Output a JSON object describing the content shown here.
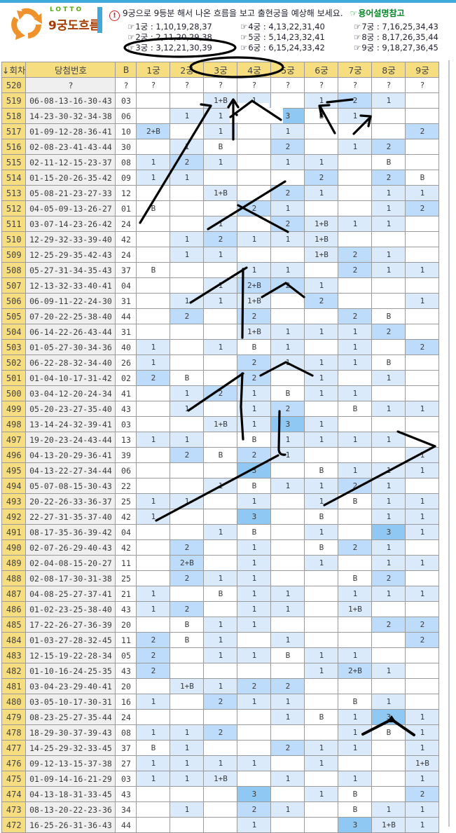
{
  "page": {
    "logo_text": "LOTTO",
    "title": "9궁도흐름"
  },
  "info": {
    "marker": "☞",
    "notice": "9궁으로 9등분 해서 나온 흐름을 보고 출현궁을 예상해 보세요.",
    "link": "용어설명참고"
  },
  "legend": {
    "entries": [
      "1궁 : 1,10,19,28,37",
      "2궁 : 2,11,20,29,38",
      "3궁 : 3,12,21,30,39",
      "4궁 : 4,13,22,31,40",
      "5궁 : 5,14,23,32,41",
      "6궁 : 6,15,24,33,42",
      "7궁 : 7,16,25,34,43",
      "8궁 : 8,17,26,35,44",
      "9궁 : 9,18,27,36,45"
    ]
  },
  "table": {
    "columns": [
      "↓회차",
      "당첨번호",
      "B",
      "1궁",
      "2궁",
      "3궁",
      "4궁",
      "5궁",
      "6궁",
      "7궁",
      "8궁",
      "9궁"
    ],
    "rows": [
      {
        "draw": "520",
        "numbers": "?",
        "bonus": "?",
        "cells": [
          "?",
          "?",
          "?",
          "?",
          "?",
          "?",
          "?",
          "?",
          "?"
        ]
      },
      {
        "draw": "519",
        "numbers": "06-08-13-16-30-43",
        "bonus": "03",
        "cells": [
          "",
          "",
          "1+B",
          "1",
          "",
          "1",
          "2",
          "1",
          ""
        ]
      },
      {
        "draw": "518",
        "numbers": "14-23-30-32-34-38",
        "bonus": "06",
        "cells": [
          "",
          "1",
          "1",
          "",
          "3",
          "B",
          "1",
          "",
          ""
        ]
      },
      {
        "draw": "517",
        "numbers": "01-09-12-28-36-41",
        "bonus": "10",
        "cells": [
          "2+B",
          "",
          "1",
          "",
          "1",
          "",
          "",
          "",
          "2"
        ]
      },
      {
        "draw": "516",
        "numbers": "02-08-23-41-43-44",
        "bonus": "30",
        "cells": [
          "",
          "1",
          "B",
          "",
          "2",
          "",
          "1",
          "2",
          ""
        ]
      },
      {
        "draw": "515",
        "numbers": "02-11-12-15-23-37",
        "bonus": "08",
        "cells": [
          "1",
          "2",
          "1",
          "",
          "1",
          "1",
          "",
          "B",
          ""
        ]
      },
      {
        "draw": "514",
        "numbers": "01-15-20-26-35-42",
        "bonus": "09",
        "cells": [
          "1",
          "1",
          "",
          "",
          "",
          "2",
          "",
          "2",
          "B"
        ]
      },
      {
        "draw": "513",
        "numbers": "05-08-21-23-27-33",
        "bonus": "12",
        "cells": [
          "",
          "",
          "1+B",
          "",
          "2",
          "1",
          "",
          "1",
          "1"
        ]
      },
      {
        "draw": "512",
        "numbers": "04-05-09-13-26-27",
        "bonus": "01",
        "cells": [
          "B",
          "",
          "",
          "2",
          "1",
          "",
          "",
          "1",
          "2"
        ]
      },
      {
        "draw": "511",
        "numbers": "03-07-14-23-26-42",
        "bonus": "24",
        "cells": [
          "",
          "",
          "1",
          "",
          "2",
          "1+B",
          "1",
          "1",
          ""
        ]
      },
      {
        "draw": "510",
        "numbers": "12-29-32-33-39-40",
        "bonus": "42",
        "cells": [
          "",
          "1",
          "2",
          "1",
          "1",
          "1+B",
          "",
          "",
          ""
        ]
      },
      {
        "draw": "509",
        "numbers": "12-25-29-35-42-43",
        "bonus": "24",
        "cells": [
          "",
          "1",
          "1",
          "",
          "",
          "1+B",
          "2",
          "1",
          ""
        ]
      },
      {
        "draw": "508",
        "numbers": "05-27-31-34-35-43",
        "bonus": "37",
        "cells": [
          "B",
          "",
          "",
          "1",
          "1",
          "",
          "2",
          "1",
          "1"
        ]
      },
      {
        "draw": "507",
        "numbers": "12-13-32-33-40-41",
        "bonus": "04",
        "cells": [
          "",
          "",
          "1",
          "2+B",
          "2",
          "1",
          "",
          "",
          ""
        ]
      },
      {
        "draw": "506",
        "numbers": "06-09-11-22-24-30",
        "bonus": "31",
        "cells": [
          "",
          "1",
          "1",
          "1+B",
          "",
          "2",
          "",
          "",
          "1"
        ]
      },
      {
        "draw": "505",
        "numbers": "07-20-22-25-38-40",
        "bonus": "44",
        "cells": [
          "",
          "2",
          "",
          "2",
          "",
          "",
          "2",
          "B",
          ""
        ]
      },
      {
        "draw": "504",
        "numbers": "06-14-22-26-43-44",
        "bonus": "31",
        "cells": [
          "",
          "",
          "",
          "1+B",
          "1",
          "1",
          "1",
          "2",
          ""
        ]
      },
      {
        "draw": "503",
        "numbers": "01-05-27-30-34-36",
        "bonus": "40",
        "cells": [
          "1",
          "",
          "1",
          "B",
          "1",
          "",
          "1",
          "",
          "2"
        ]
      },
      {
        "draw": "502",
        "numbers": "06-22-28-32-34-40",
        "bonus": "26",
        "cells": [
          "1",
          "",
          "",
          "2",
          "1",
          "1",
          "1",
          "B",
          ""
        ]
      },
      {
        "draw": "501",
        "numbers": "01-04-10-17-31-42",
        "bonus": "02",
        "cells": [
          "2",
          "B",
          "",
          "2",
          "",
          "1",
          "",
          "1",
          ""
        ]
      },
      {
        "draw": "500",
        "numbers": "03-04-12-20-24-34",
        "bonus": "41",
        "cells": [
          "",
          "1",
          "2",
          "1",
          "B",
          "1",
          "1",
          "",
          ""
        ]
      },
      {
        "draw": "499",
        "numbers": "05-20-23-27-35-40",
        "bonus": "43",
        "cells": [
          "",
          "1",
          "",
          "1",
          "2",
          "",
          "B",
          "1",
          "1"
        ]
      },
      {
        "draw": "498",
        "numbers": "13-14-24-32-39-41",
        "bonus": "03",
        "cells": [
          "",
          "",
          "1+B",
          "1",
          "3",
          "1",
          "",
          "",
          ""
        ]
      },
      {
        "draw": "497",
        "numbers": "19-20-23-24-43-44",
        "bonus": "13",
        "cells": [
          "1",
          "1",
          "",
          "B",
          "1",
          "1",
          "1",
          "1",
          ""
        ]
      },
      {
        "draw": "496",
        "numbers": "04-13-20-29-36-41",
        "bonus": "39",
        "cells": [
          "",
          "2",
          "B",
          "2",
          "1",
          "",
          "",
          "",
          "1"
        ]
      },
      {
        "draw": "495",
        "numbers": "04-13-22-27-34-44",
        "bonus": "06",
        "cells": [
          "",
          "",
          "",
          "3",
          "",
          "B",
          "1",
          "1",
          "1"
        ]
      },
      {
        "draw": "494",
        "numbers": "05-07-08-15-30-43",
        "bonus": "22",
        "cells": [
          "",
          "",
          "1",
          "B",
          "1",
          "1",
          "2",
          "1",
          ""
        ]
      },
      {
        "draw": "493",
        "numbers": "20-22-26-33-36-37",
        "bonus": "25",
        "cells": [
          "1",
          "1",
          "",
          "1",
          "",
          "1",
          "B",
          "1",
          "1"
        ]
      },
      {
        "draw": "492",
        "numbers": "22-27-31-35-37-40",
        "bonus": "42",
        "cells": [
          "1",
          "",
          "",
          "3",
          "",
          "B",
          "",
          "1",
          "1"
        ]
      },
      {
        "draw": "491",
        "numbers": "08-17-35-36-39-42",
        "bonus": "04",
        "cells": [
          "",
          "",
          "1",
          "B",
          "",
          "1",
          "",
          "3",
          "1"
        ]
      },
      {
        "draw": "490",
        "numbers": "02-07-26-29-40-43",
        "bonus": "42",
        "cells": [
          "",
          "2",
          "",
          "1",
          "",
          "B",
          "2",
          "1",
          ""
        ]
      },
      {
        "draw": "489",
        "numbers": "02-04-08-15-20-27",
        "bonus": "11",
        "cells": [
          "",
          "2+B",
          "",
          "1",
          "",
          "1",
          "",
          "1",
          "1"
        ]
      },
      {
        "draw": "488",
        "numbers": "02-08-17-30-31-38",
        "bonus": "25",
        "cells": [
          "",
          "2",
          "1",
          "1",
          "",
          "",
          "B",
          "2",
          ""
        ]
      },
      {
        "draw": "487",
        "numbers": "04-08-25-27-37-41",
        "bonus": "21",
        "cells": [
          "1",
          "",
          "B",
          "1",
          "1",
          "",
          "1",
          "1",
          "1"
        ]
      },
      {
        "draw": "486",
        "numbers": "01-02-23-25-38-40",
        "bonus": "43",
        "cells": [
          "1",
          "2",
          "",
          "1",
          "1",
          "",
          "1+B",
          "",
          ""
        ]
      },
      {
        "draw": "485",
        "numbers": "17-22-26-27-36-39",
        "bonus": "20",
        "cells": [
          "",
          "B",
          "1",
          "1",
          "",
          "",
          "",
          "2",
          "2"
        ]
      },
      {
        "draw": "484",
        "numbers": "01-03-27-28-32-45",
        "bonus": "11",
        "cells": [
          "2",
          "B",
          "1",
          "",
          "1",
          "",
          "",
          "",
          "2"
        ]
      },
      {
        "draw": "483",
        "numbers": "12-15-19-22-28-34",
        "bonus": "05",
        "cells": [
          "2",
          "",
          "1",
          "1",
          "B",
          "1",
          "1",
          "",
          ""
        ]
      },
      {
        "draw": "482",
        "numbers": "01-10-16-24-25-35",
        "bonus": "43",
        "cells": [
          "2",
          "",
          "",
          "",
          "",
          "1",
          "2+B",
          "1",
          ""
        ]
      },
      {
        "draw": "481",
        "numbers": "03-04-23-29-40-41",
        "bonus": "20",
        "cells": [
          "",
          "1+B",
          "1",
          "2",
          "2",
          "",
          "",
          "",
          ""
        ]
      },
      {
        "draw": "480",
        "numbers": "03-05-10-17-30-31",
        "bonus": "16",
        "cells": [
          "1",
          "",
          "2",
          "1",
          "1",
          "",
          "B",
          "1",
          ""
        ]
      },
      {
        "draw": "479",
        "numbers": "08-23-25-27-35-44",
        "bonus": "24",
        "cells": [
          "",
          "",
          "",
          "",
          "1",
          "B",
          "1",
          "3",
          "1"
        ]
      },
      {
        "draw": "478",
        "numbers": "18-29-30-37-39-43",
        "bonus": "08",
        "cells": [
          "1",
          "1",
          "2",
          "",
          "",
          "",
          "1",
          "B",
          "1"
        ]
      },
      {
        "draw": "477",
        "numbers": "14-25-29-32-33-45",
        "bonus": "37",
        "cells": [
          "B",
          "1",
          "",
          "",
          "2",
          "1",
          "1",
          "",
          "1"
        ]
      },
      {
        "draw": "476",
        "numbers": "09-12-13-15-37-38",
        "bonus": "27",
        "cells": [
          "1",
          "1",
          "1",
          "1",
          "",
          "1",
          "",
          "",
          "1+B"
        ]
      },
      {
        "draw": "475",
        "numbers": "01-09-14-16-21-29",
        "bonus": "03",
        "cells": [
          "1",
          "1",
          "1+B",
          "",
          "1",
          "",
          "1",
          "",
          "1"
        ]
      },
      {
        "draw": "474",
        "numbers": "04-13-18-31-33-45",
        "bonus": "43",
        "cells": [
          "",
          "",
          "",
          "3",
          "",
          "1",
          "B",
          "",
          "2"
        ]
      },
      {
        "draw": "473",
        "numbers": "08-13-20-22-23-36",
        "bonus": "34",
        "cells": [
          "",
          "1",
          "",
          "2",
          "1",
          "",
          "B",
          "1",
          "1"
        ]
      },
      {
        "draw": "472",
        "numbers": "16-25-26-31-36-43",
        "bonus": "44",
        "cells": [
          "",
          "",
          "",
          "1",
          "",
          "",
          "3",
          "1+B",
          "1"
        ]
      }
    ]
  },
  "colors": {
    "bar_blue": "#3fa9dc",
    "lotto_green": "#55aa11",
    "title_color": "#a53b00",
    "link_green": "#008822",
    "logo_orange": "#f0922c",
    "header_bg": "#f6dd80",
    "row_label_bg": "#f6dd80",
    "numbers_bg": "#efefef",
    "cell_1": "#daeafb",
    "cell_2": "#bddcfb",
    "cell_3": "#8fc8f3"
  }
}
